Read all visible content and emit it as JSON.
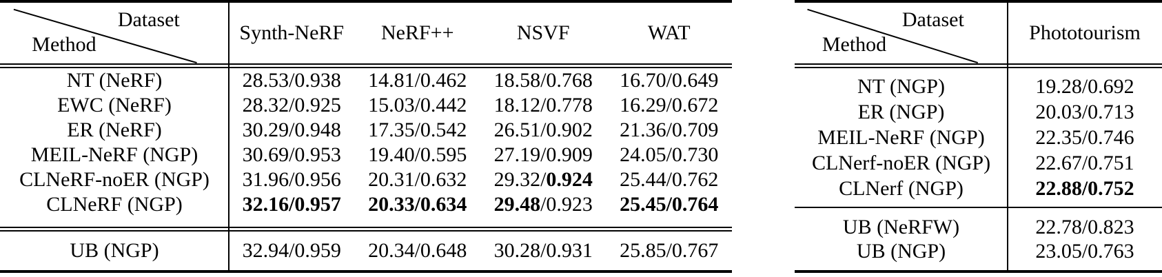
{
  "colors": {
    "text": "#000000",
    "background": "#ffffff",
    "rule": "#000000"
  },
  "tables": [
    {
      "header": {
        "diag_top": "Dataset",
        "diag_bottom": "Method",
        "columns": [
          "Synth-NeRF",
          "NeRF++",
          "NSVF",
          "WAT"
        ]
      },
      "rows": [
        {
          "method": "NT (NeRF)",
          "cells": [
            {
              "v": "28.53/0.938",
              "b": ""
            },
            {
              "v": "14.81/0.462",
              "b": ""
            },
            {
              "v": "18.58/0.768",
              "b": ""
            },
            {
              "v": "16.70/0.649",
              "b": ""
            }
          ]
        },
        {
          "method": "EWC (NeRF)",
          "cells": [
            {
              "v": "28.32/0.925",
              "b": ""
            },
            {
              "v": "15.03/0.442",
              "b": ""
            },
            {
              "v": "18.12/0.778",
              "b": ""
            },
            {
              "v": "16.29/0.672",
              "b": ""
            }
          ]
        },
        {
          "method": "ER (NeRF)",
          "cells": [
            {
              "v": "30.29/0.948",
              "b": ""
            },
            {
              "v": "17.35/0.542",
              "b": ""
            },
            {
              "v": "26.51/0.902",
              "b": ""
            },
            {
              "v": "21.36/0.709",
              "b": ""
            }
          ]
        },
        {
          "method": "MEIL-NeRF (NGP)",
          "cells": [
            {
              "v": "30.69/0.953",
              "b": ""
            },
            {
              "v": "19.40/0.595",
              "b": ""
            },
            {
              "v": "27.19/0.909",
              "b": ""
            },
            {
              "v": "24.05/0.730",
              "b": ""
            }
          ]
        },
        {
          "method": "CLNeRF-noER (NGP)",
          "cells": [
            {
              "v": "31.96/0.956",
              "b": ""
            },
            {
              "v": "20.31/0.632",
              "b": ""
            },
            {
              "v": "29.32/0.924",
              "b": "ssim"
            },
            {
              "v": "25.44/0.762",
              "b": ""
            }
          ]
        },
        {
          "method": "CLNeRF (NGP)",
          "cells": [
            {
              "v": "32.16/0.957",
              "b": "both"
            },
            {
              "v": "20.33/0.634",
              "b": "both"
            },
            {
              "v": "29.48/0.923",
              "b": "psnr"
            },
            {
              "v": "25.45/0.764",
              "b": "both"
            }
          ]
        }
      ],
      "ub_rows": [
        {
          "method": "UB (NGP)",
          "cells": [
            {
              "v": "32.94/0.959",
              "b": ""
            },
            {
              "v": "20.34/0.648",
              "b": ""
            },
            {
              "v": "30.28/0.931",
              "b": ""
            },
            {
              "v": "25.85/0.767",
              "b": ""
            }
          ]
        }
      ]
    },
    {
      "header": {
        "diag_top": "Dataset",
        "diag_bottom": "Method",
        "columns": [
          "Phototourism"
        ]
      },
      "rows": [
        {
          "method": "NT (NGP)",
          "cells": [
            {
              "v": "19.28/0.692",
              "b": ""
            }
          ]
        },
        {
          "method": "ER (NGP)",
          "cells": [
            {
              "v": "20.03/0.713",
              "b": ""
            }
          ]
        },
        {
          "method": "MEIL-NeRF (NGP)",
          "cells": [
            {
              "v": "22.35/0.746",
              "b": ""
            }
          ]
        },
        {
          "method": "CLNerf-noER (NGP)",
          "cells": [
            {
              "v": "22.67/0.751",
              "b": ""
            }
          ]
        },
        {
          "method": "CLNerf (NGP)",
          "cells": [
            {
              "v": "22.88/0.752",
              "b": "both"
            }
          ]
        }
      ],
      "ub_rows": [
        {
          "method": "UB (NeRFW)",
          "cells": [
            {
              "v": "22.78/0.823",
              "b": ""
            }
          ]
        },
        {
          "method": "UB (NGP)",
          "cells": [
            {
              "v": "23.05/0.763",
              "b": ""
            }
          ]
        }
      ]
    }
  ]
}
